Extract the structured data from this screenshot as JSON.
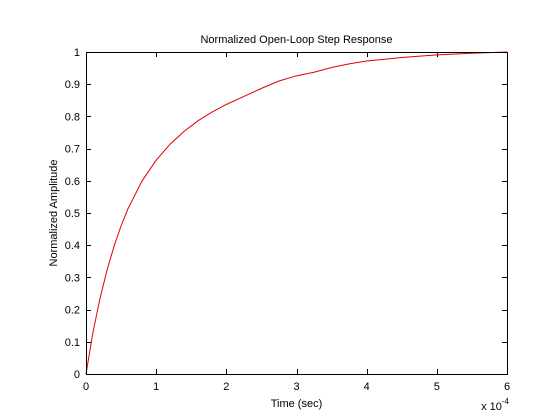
{
  "chart_data": {
    "type": "line",
    "title": "Normalized Open-Loop Step Response",
    "xlabel": "Time (sec)",
    "ylabel": "Normalized Amplitude",
    "x_multiplier_base": "x 10",
    "x_multiplier_exp": "-4",
    "xlim": [
      0,
      6
    ],
    "ylim": [
      0,
      1
    ],
    "xticks": [
      0,
      1,
      2,
      3,
      4,
      5,
      6
    ],
    "yticks": [
      0,
      0.1,
      0.2,
      0.3,
      0.4,
      0.5,
      0.6,
      0.7,
      0.8,
      0.9,
      1
    ],
    "xtick_labels": [
      "0",
      "1",
      "2",
      "3",
      "4",
      "5",
      "6"
    ],
    "ytick_labels": [
      "0",
      "0.1",
      "0.2",
      "0.3",
      "0.4",
      "0.5",
      "0.6",
      "0.7",
      "0.8",
      "0.9",
      "1"
    ],
    "grid": false,
    "series": [
      {
        "color": "#e00000",
        "x": [
          0,
          0.1,
          0.2,
          0.3,
          0.4,
          0.5,
          0.6,
          0.8,
          1.0,
          1.2,
          1.4,
          1.6,
          1.8,
          2.0,
          2.25,
          2.5,
          2.75,
          3.0,
          3.25,
          3.5,
          3.75,
          4.0,
          4.5,
          5.0,
          5.5,
          6.0
        ],
        "y": [
          0,
          0.13,
          0.235,
          0.323,
          0.397,
          0.46,
          0.514,
          0.6,
          0.664,
          0.714,
          0.754,
          0.787,
          0.814,
          0.837,
          0.862,
          0.887,
          0.91,
          0.926,
          0.937,
          0.952,
          0.963,
          0.972,
          0.983,
          0.991,
          0.996,
          1.0
        ]
      }
    ]
  }
}
